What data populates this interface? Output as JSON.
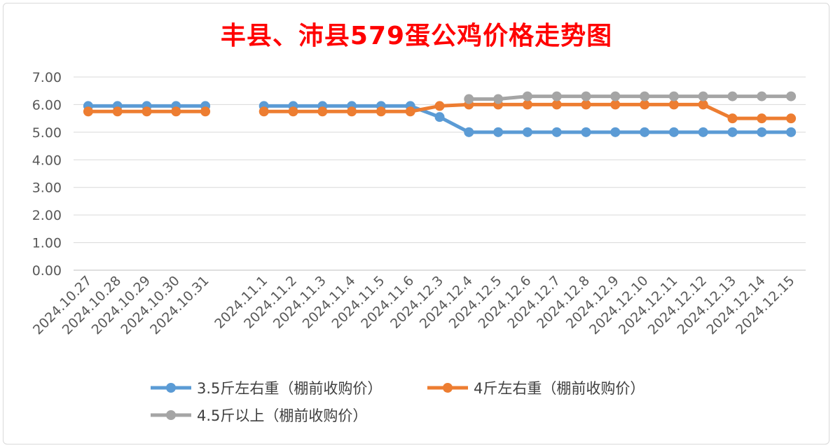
{
  "chart_data": {
    "type": "line",
    "title": "丰县、沛县579蛋公鸡价格走势图",
    "xlabel": "",
    "ylabel": "",
    "ylim": [
      0,
      7
    ],
    "y_ticks": [
      "0.00",
      "1.00",
      "2.00",
      "3.00",
      "4.00",
      "5.00",
      "6.00",
      "7.00"
    ],
    "grid": true,
    "legend_position": "bottom",
    "categories": [
      "2024.10.27",
      "2024.10.28",
      "2024.10.29",
      "2024.10.30",
      "2024.10.31",
      "",
      "2024.11.1",
      "2024.11.2",
      "2024.11.3",
      "2024.11.4",
      "2024.11.5",
      "2024.11.6",
      "2024.12.3",
      "2024.12.4",
      "2024.12.5",
      "2024.12.6",
      "2024.12.7",
      "2024.12.8",
      "2024.12.9",
      "2024.12.10",
      "2024.12.11",
      "2024.12.12",
      "2024.12.13",
      "2024.12.14",
      "2024.12.15"
    ],
    "series": [
      {
        "name": "3.5斤左右重（棚前收购价）",
        "color": "#5b9bd5",
        "values": [
          5.95,
          5.95,
          5.95,
          5.95,
          5.95,
          null,
          5.95,
          5.95,
          5.95,
          5.95,
          5.95,
          5.95,
          5.55,
          5.0,
          5.0,
          5.0,
          5.0,
          5.0,
          5.0,
          5.0,
          5.0,
          5.0,
          5.0,
          5.0,
          5.0
        ]
      },
      {
        "name": "4斤左右重（棚前收购价）",
        "color": "#ed7d31",
        "values": [
          5.75,
          5.75,
          5.75,
          5.75,
          5.75,
          null,
          5.75,
          5.75,
          5.75,
          5.75,
          5.75,
          5.75,
          5.95,
          6.0,
          6.0,
          6.0,
          6.0,
          6.0,
          6.0,
          6.0,
          6.0,
          6.0,
          5.5,
          5.5,
          5.5
        ]
      },
      {
        "name": "4.5斤以上（棚前收购价）",
        "color": "#a5a5a5",
        "values": [
          null,
          null,
          null,
          null,
          null,
          null,
          null,
          null,
          null,
          null,
          null,
          null,
          null,
          6.2,
          6.2,
          6.3,
          6.3,
          6.3,
          6.3,
          6.3,
          6.3,
          6.3,
          6.3,
          6.3,
          6.3
        ]
      }
    ]
  }
}
